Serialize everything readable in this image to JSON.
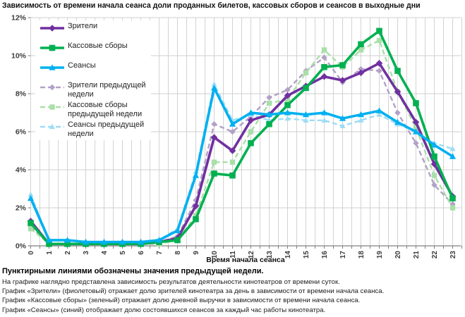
{
  "title": "Зависимость от времени начала сеанса доли проданных билетов, кассовых сборов и сеансов в выходные дни",
  "footer": {
    "note_bold": "Пунктирными линиями обозначены значения предыдущей недели.",
    "lines": [
      "На графике наглядно представлена зависимость результатов деятельности кинотеатров от времени суток.",
      "График «Зрители» (фиолетовый) отражает долю зрителей кинотеатра за день в зависимости от времени начала сеанса.",
      "График «Кассовые сборы» (зеленый) отражает долю дневной выручки в зависимости от времени начала сеанса.",
      "График «Сеансы» (синий) отображает долю состоявшихся сеансов за каждый час работы кинотеатра."
    ]
  },
  "chart_data": {
    "type": "line",
    "title": "Зависимость от времени начала сеанса доли проданных билетов, кассовых сборов и сеансов в выходные дни",
    "xlabel": "Время начала сеанса",
    "ylabel": "",
    "x": [
      0,
      1,
      2,
      3,
      4,
      5,
      6,
      7,
      8,
      9,
      10,
      11,
      12,
      13,
      14,
      15,
      16,
      17,
      18,
      19,
      20,
      21,
      22,
      23
    ],
    "ylim": [
      0,
      12
    ],
    "ytick_labels": [
      "0%",
      "2%",
      "4%",
      "6%",
      "8%",
      "10%",
      "12%"
    ],
    "grid": "on",
    "legend_position": "top-left-inside",
    "grid_color": "#cfcfcf",
    "axis_color": "#808080",
    "series": [
      {
        "name": "Зрители",
        "color": "#7030A0",
        "dashed": false,
        "marker": "diamond",
        "values": [
          1.3,
          0.1,
          0.1,
          0.1,
          0.1,
          0.1,
          0.1,
          0.2,
          0.4,
          2.1,
          5.7,
          5.0,
          6.6,
          6.9,
          7.9,
          8.4,
          8.9,
          8.7,
          9.1,
          9.6,
          8.1,
          6.5,
          4.3,
          2.6
        ]
      },
      {
        "name": "Кассовые сборы",
        "color": "#00B050",
        "dashed": false,
        "marker": "square",
        "values": [
          1.2,
          0.1,
          0.1,
          0.1,
          0.1,
          0.1,
          0.1,
          0.2,
          0.3,
          1.4,
          3.8,
          3.7,
          5.4,
          6.4,
          7.4,
          8.3,
          9.4,
          9.5,
          10.6,
          11.3,
          9.2,
          7.5,
          4.7,
          2.5
        ]
      },
      {
        "name": "Сеансы",
        "color": "#00B0F0",
        "dashed": false,
        "marker": "triangle",
        "values": [
          2.5,
          0.3,
          0.3,
          0.2,
          0.2,
          0.2,
          0.2,
          0.3,
          0.8,
          3.7,
          8.3,
          6.4,
          7.0,
          6.9,
          7.0,
          6.9,
          7.0,
          6.7,
          6.9,
          7.1,
          6.5,
          6.0,
          5.3,
          4.7
        ]
      },
      {
        "name": "Зрители предыдущей недели",
        "color": "#B2A1C7",
        "dashed": true,
        "marker": "diamond",
        "values": [
          1.0,
          0.1,
          0.1,
          0.1,
          0.1,
          0.1,
          0.1,
          0.2,
          0.5,
          2.4,
          6.4,
          6.0,
          6.8,
          7.8,
          8.2,
          9.2,
          9.9,
          8.6,
          9.3,
          9.2,
          7.0,
          5.4,
          3.2,
          2.2
        ]
      },
      {
        "name": "Кассовые сборы предыдущей недели",
        "color": "#A9DFA9",
        "dashed": true,
        "marker": "square",
        "values": [
          0.9,
          0.1,
          0.1,
          0.1,
          0.1,
          0.1,
          0.1,
          0.1,
          0.3,
          1.6,
          4.4,
          4.4,
          6.0,
          7.5,
          7.7,
          9.1,
          10.3,
          9.4,
          10.3,
          10.8,
          8.1,
          6.2,
          3.7,
          2.0
        ]
      },
      {
        "name": "Сеансы предыдущей недели",
        "color": "#9EDCF5",
        "dashed": true,
        "marker": "triangle",
        "values": [
          2.7,
          0.3,
          0.3,
          0.2,
          0.2,
          0.2,
          0.2,
          0.3,
          0.9,
          3.9,
          8.5,
          6.6,
          6.9,
          6.6,
          6.7,
          6.6,
          6.6,
          6.3,
          6.6,
          6.9,
          6.4,
          6.0,
          5.4,
          5.1
        ]
      }
    ]
  }
}
